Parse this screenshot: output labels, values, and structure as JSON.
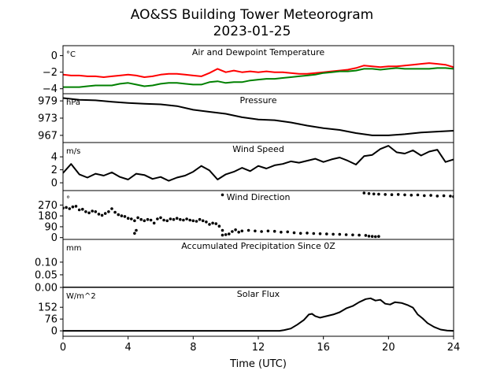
{
  "title_line1": "AO&SS Building Tower Meteorogram",
  "title_line2": "2023-01-25",
  "xlabel": "Time (UTC)",
  "colors": {
    "temperature": "#ff0000",
    "dewpoint": "#008000",
    "default": "#000000"
  },
  "chart_data": {
    "type": "line",
    "xlim": [
      0,
      24
    ],
    "xticks": [
      0,
      4,
      8,
      12,
      16,
      20,
      24
    ],
    "panels": [
      {
        "name": "temperature",
        "title": "Air and Dewpoint Temperature",
        "unit": "°C",
        "ylim": [
          -4.6,
          1.2
        ],
        "yticks": [
          0,
          -2,
          -4
        ],
        "series": [
          {
            "color": "#ff0000",
            "style": "line",
            "x": [
              0,
              0.5,
              1,
              1.5,
              2,
              2.5,
              3,
              3.5,
              4,
              4.5,
              5,
              5.5,
              6,
              6.5,
              7,
              7.5,
              8,
              8.5,
              9,
              9.5,
              10,
              10.5,
              11,
              11.5,
              12,
              12.5,
              13,
              13.5,
              14,
              14.5,
              15,
              15.5,
              16,
              16.5,
              17,
              17.5,
              18,
              18.5,
              19,
              19.5,
              20,
              20.5,
              21,
              21.5,
              22,
              22.5,
              23,
              23.5,
              24
            ],
            "y": [
              -2.3,
              -2.4,
              -2.4,
              -2.5,
              -2.5,
              -2.6,
              -2.5,
              -2.4,
              -2.3,
              -2.4,
              -2.6,
              -2.5,
              -2.3,
              -2.2,
              -2.2,
              -2.3,
              -2.4,
              -2.5,
              -2.1,
              -1.6,
              -2.0,
              -1.8,
              -2.0,
              -1.9,
              -2.0,
              -1.9,
              -2.0,
              -2.0,
              -2.1,
              -2.2,
              -2.2,
              -2.1,
              -2.0,
              -1.9,
              -1.8,
              -1.7,
              -1.5,
              -1.2,
              -1.3,
              -1.4,
              -1.3,
              -1.3,
              -1.2,
              -1.1,
              -1.0,
              -0.9,
              -1.0,
              -1.1,
              -1.4
            ]
          },
          {
            "color": "#008000",
            "style": "line",
            "x": [
              0,
              0.5,
              1,
              1.5,
              2,
              2.5,
              3,
              3.5,
              4,
              4.5,
              5,
              5.5,
              6,
              6.5,
              7,
              7.5,
              8,
              8.5,
              9,
              9.5,
              10,
              10.5,
              11,
              11.5,
              12,
              12.5,
              13,
              13.5,
              14,
              14.5,
              15,
              15.5,
              16,
              16.5,
              17,
              17.5,
              18,
              18.5,
              19,
              19.5,
              20,
              20.5,
              21,
              21.5,
              22,
              22.5,
              23,
              23.5,
              24
            ],
            "y": [
              -3.8,
              -3.8,
              -3.8,
              -3.7,
              -3.6,
              -3.6,
              -3.6,
              -3.4,
              -3.3,
              -3.5,
              -3.7,
              -3.6,
              -3.4,
              -3.3,
              -3.3,
              -3.4,
              -3.5,
              -3.5,
              -3.2,
              -3.1,
              -3.3,
              -3.2,
              -3.2,
              -3.0,
              -2.9,
              -2.8,
              -2.8,
              -2.7,
              -2.6,
              -2.5,
              -2.4,
              -2.3,
              -2.1,
              -2.0,
              -1.9,
              -1.9,
              -1.8,
              -1.6,
              -1.6,
              -1.7,
              -1.6,
              -1.5,
              -1.6,
              -1.6,
              -1.6,
              -1.6,
              -1.5,
              -1.5,
              -1.6
            ]
          }
        ]
      },
      {
        "name": "pressure",
        "title": "Pressure",
        "unit": "hPa",
        "ylim": [
          964.5,
          981.5
        ],
        "yticks": [
          979,
          973,
          967
        ],
        "series": [
          {
            "color": "#000000",
            "style": "line",
            "x": [
              0,
              1,
              2,
              3,
              4,
              5,
              6,
              7,
              8,
              9,
              10,
              11,
              12,
              13,
              14,
              15,
              16,
              17,
              18,
              19,
              20,
              21,
              22,
              23,
              24
            ],
            "y": [
              980.0,
              979.4,
              979.2,
              978.7,
              978.3,
              978.0,
              977.8,
              977.2,
              975.9,
              975.2,
              974.5,
              973.3,
              972.5,
              972.3,
              971.5,
              970.4,
              969.5,
              968.9,
              967.8,
              967.0,
              967.0,
              967.4,
              968.0,
              968.3,
              968.6
            ]
          }
        ]
      },
      {
        "name": "wind_speed",
        "title": "Wind Speed",
        "unit": "m/s",
        "ylim": [
          -1.2,
          6.2
        ],
        "yticks": [
          4,
          2,
          0
        ],
        "series": [
          {
            "color": "#000000",
            "style": "line",
            "x": [
              0,
              0.5,
              1,
              1.5,
              2,
              2.5,
              3,
              3.5,
              4,
              4.5,
              5,
              5.5,
              6,
              6.5,
              7,
              7.5,
              8,
              8.5,
              9,
              9.5,
              10,
              10.5,
              11,
              11.5,
              12,
              12.5,
              13,
              13.5,
              14,
              14.5,
              15,
              15.5,
              16,
              16.5,
              17,
              17.5,
              18,
              18.5,
              19,
              19.5,
              20,
              20.5,
              21,
              21.5,
              22,
              22.5,
              23,
              23.5,
              24
            ],
            "y": [
              1.5,
              2.9,
              1.3,
              0.8,
              1.4,
              1.1,
              1.6,
              0.9,
              0.5,
              1.4,
              1.2,
              0.6,
              0.9,
              0.3,
              0.8,
              1.1,
              1.7,
              2.6,
              1.9,
              0.5,
              1.3,
              1.7,
              2.3,
              1.8,
              2.6,
              2.2,
              2.7,
              2.9,
              3.3,
              3.1,
              3.4,
              3.7,
              3.2,
              3.6,
              3.9,
              3.4,
              2.8,
              4.1,
              4.3,
              5.2,
              5.7,
              4.7,
              4.5,
              5.0,
              4.2,
              4.8,
              5.1,
              3.2,
              3.6
            ]
          }
        ]
      },
      {
        "name": "wind_direction",
        "title": "Wind Direction",
        "unit": "°",
        "ylim": [
          -15,
          390
        ],
        "yticks": [
          270,
          180,
          90,
          0
        ],
        "series": [
          {
            "color": "#000000",
            "style": "dots",
            "x": [
              0,
              0.2,
              0.4,
              0.6,
              0.8,
              1.0,
              1.2,
              1.4,
              1.6,
              1.8,
              2.0,
              2.2,
              2.4,
              2.6,
              2.8,
              3.0,
              3.2,
              3.4,
              3.6,
              3.8,
              4.0,
              4.2,
              4.4,
              4.4,
              4.5,
              4.6,
              4.8,
              5.0,
              5.2,
              5.4,
              5.6,
              5.8,
              6.0,
              6.2,
              6.4,
              6.6,
              6.8,
              7.0,
              7.2,
              7.4,
              7.6,
              7.8,
              8.0,
              8.2,
              8.4,
              8.6,
              8.8,
              9.0,
              9.2,
              9.4,
              9.6,
              9.8,
              9.8,
              10.0,
              10.2,
              10.4,
              10.6,
              10.8,
              11.0,
              11.4,
              11.8,
              12.2,
              12.6,
              13.0,
              13.4,
              13.8,
              14.2,
              14.6,
              15.0,
              15.4,
              15.8,
              16.2,
              16.6,
              17.0,
              17.4,
              17.8,
              18.2,
              18.6,
              18.8,
              19.0,
              19.2,
              19.4,
              9.8,
              18.5,
              18.8,
              19.1,
              19.4,
              19.8,
              20.2,
              20.6,
              21.0,
              21.4,
              21.8,
              22.2,
              22.6,
              23.0,
              23.4,
              23.8,
              24.0
            ],
            "y": [
              245,
              250,
              240,
              255,
              260,
              230,
              235,
              215,
              205,
              220,
              215,
              195,
              185,
              200,
              215,
              240,
              210,
              190,
              180,
              175,
              160,
              155,
              140,
              35,
              60,
              165,
              150,
              140,
              150,
              145,
              120,
              155,
              165,
              145,
              140,
              155,
              150,
              160,
              150,
              145,
              155,
              145,
              140,
              135,
              150,
              140,
              130,
              110,
              120,
              115,
              95,
              60,
              20,
              25,
              30,
              50,
              65,
              45,
              55,
              60,
              55,
              50,
              55,
              52,
              45,
              48,
              40,
              35,
              38,
              34,
              32,
              30,
              28,
              27,
              24,
              22,
              20,
              18,
              12,
              10,
              8,
              10,
              355,
              370,
              365,
              362,
              360,
              358,
              356,
              358,
              355,
              352,
              354,
              348,
              350,
              345,
              347,
              344,
              340
            ]
          }
        ]
      },
      {
        "name": "precipitation",
        "title": "Accumulated Precipitation Since 0Z",
        "unit": "mm",
        "ylim": [
          0,
          0.19
        ],
        "yticks": [
          0.1,
          0.05,
          0.0
        ],
        "series": [
          {
            "color": "#000000",
            "style": "line",
            "x": [
              0,
              24
            ],
            "y": [
              0,
              0
            ]
          }
        ]
      },
      {
        "name": "solar_flux",
        "title": "Solar Flux",
        "unit": "W/m^2",
        "ylim": [
          -35,
          280
        ],
        "yticks": [
          152,
          76,
          0
        ],
        "series": [
          {
            "color": "#000000",
            "style": "line",
            "x": [
              0,
              4,
              8,
              12,
              13.3,
              13.6,
              14,
              14.4,
              14.8,
              15.1,
              15.3,
              15.5,
              15.8,
              16.2,
              16.6,
              17,
              17.4,
              17.8,
              18.2,
              18.6,
              18.9,
              19.2,
              19.5,
              19.8,
              20.1,
              20.4,
              20.8,
              21.2,
              21.5,
              21.8,
              22.1,
              22.4,
              22.8,
              23.2,
              23.6,
              24
            ],
            "y": [
              0,
              0,
              0,
              0,
              0,
              5,
              15,
              40,
              70,
              105,
              110,
              95,
              85,
              95,
              105,
              120,
              145,
              160,
              185,
              205,
              210,
              195,
              200,
              175,
              170,
              185,
              180,
              165,
              150,
              105,
              80,
              50,
              25,
              8,
              2,
              0
            ]
          }
        ]
      }
    ]
  }
}
